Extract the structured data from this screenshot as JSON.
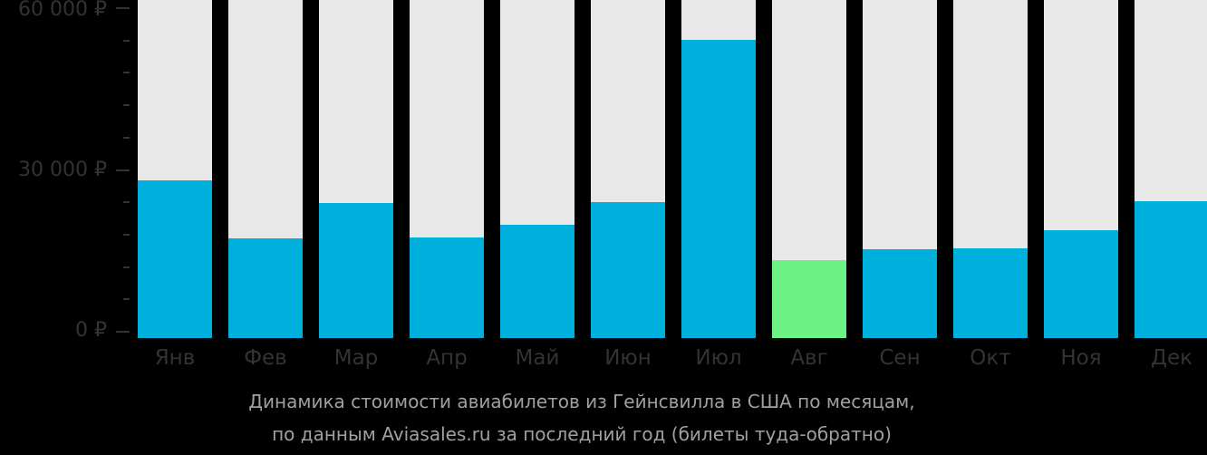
{
  "chart_data": {
    "type": "bar",
    "title": "Динамика стоимости авиабилетов из Гейнсвилла в США по месяцам, по данным Aviasales.ru за последний год (билеты туда-обратно)",
    "xlabel": "",
    "ylabel": "",
    "ylim": [
      0,
      60000
    ],
    "yticks": [
      "0 ₽",
      "30 000 ₽",
      "60 000 ₽"
    ],
    "categories": [
      "Янв",
      "Фев",
      "Мар",
      "Апр",
      "Май",
      "Июн",
      "Июл",
      "Авг",
      "Сен",
      "Окт",
      "Ноя",
      "Дек"
    ],
    "values": [
      28000,
      17300,
      23900,
      17500,
      19800,
      24000,
      54100,
      13300,
      15300,
      15500,
      18800,
      24200
    ],
    "colors": {
      "bar": "#00b0dc",
      "min_bar": "#6cf285",
      "background_column": "#e8e8e8",
      "axis_text": "#333333",
      "caption_text": "#a0a0a0"
    },
    "highlight_min_index": 7,
    "grid": false,
    "legend": "none"
  },
  "axis": {
    "y_labels": {
      "top": "60 000 ₽",
      "mid": "30 000 ₽",
      "zero": "0 ₽"
    }
  },
  "caption": {
    "line1": "Динамика стоимости авиабилетов из Гейнсвилла в США по месяцам,",
    "line2": "по данным Aviasales.ru за последний год (билеты туда-обратно)"
  }
}
